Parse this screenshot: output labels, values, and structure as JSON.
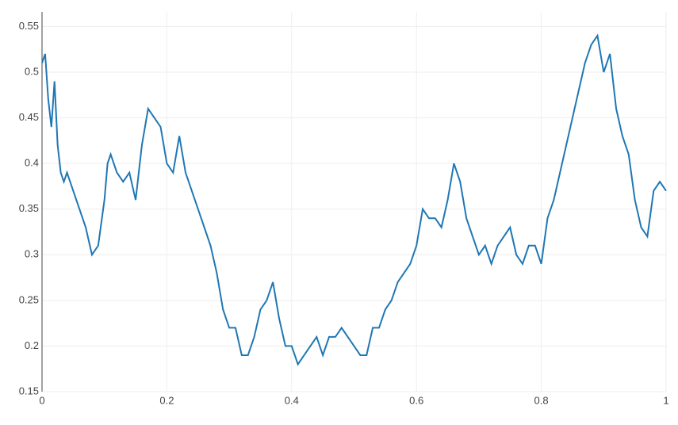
{
  "chart_data": {
    "type": "line",
    "x": [
      0,
      0.005,
      0.01,
      0.015,
      0.02,
      0.025,
      0.03,
      0.035,
      0.04,
      0.05,
      0.06,
      0.07,
      0.08,
      0.09,
      0.1,
      0.105,
      0.11,
      0.12,
      0.13,
      0.14,
      0.15,
      0.16,
      0.17,
      0.18,
      0.19,
      0.2,
      0.21,
      0.22,
      0.23,
      0.24,
      0.25,
      0.26,
      0.27,
      0.28,
      0.29,
      0.3,
      0.31,
      0.32,
      0.33,
      0.34,
      0.35,
      0.36,
      0.37,
      0.38,
      0.39,
      0.4,
      0.41,
      0.42,
      0.43,
      0.44,
      0.45,
      0.46,
      0.47,
      0.48,
      0.49,
      0.5,
      0.51,
      0.52,
      0.53,
      0.54,
      0.55,
      0.56,
      0.57,
      0.58,
      0.59,
      0.6,
      0.61,
      0.62,
      0.63,
      0.64,
      0.65,
      0.66,
      0.67,
      0.68,
      0.69,
      0.7,
      0.71,
      0.72,
      0.73,
      0.74,
      0.75,
      0.76,
      0.77,
      0.78,
      0.79,
      0.8,
      0.81,
      0.82,
      0.83,
      0.84,
      0.85,
      0.86,
      0.87,
      0.88,
      0.89,
      0.9,
      0.91,
      0.92,
      0.93,
      0.94,
      0.95,
      0.96,
      0.97,
      0.98,
      0.99,
      1
    ],
    "series": [
      {
        "color": "#1f77b4",
        "values": [
          0.51,
          0.52,
          0.47,
          0.44,
          0.49,
          0.42,
          0.39,
          0.38,
          0.39,
          0.37,
          0.35,
          0.33,
          0.3,
          0.31,
          0.36,
          0.4,
          0.41,
          0.39,
          0.38,
          0.39,
          0.36,
          0.42,
          0.46,
          0.45,
          0.44,
          0.4,
          0.39,
          0.43,
          0.39,
          0.37,
          0.35,
          0.33,
          0.31,
          0.28,
          0.24,
          0.22,
          0.22,
          0.19,
          0.19,
          0.21,
          0.24,
          0.25,
          0.27,
          0.23,
          0.2,
          0.2,
          0.18,
          0.19,
          0.2,
          0.21,
          0.19,
          0.21,
          0.21,
          0.22,
          0.21,
          0.2,
          0.19,
          0.19,
          0.22,
          0.22,
          0.24,
          0.25,
          0.27,
          0.28,
          0.29,
          0.31,
          0.35,
          0.34,
          0.34,
          0.33,
          0.36,
          0.4,
          0.38,
          0.34,
          0.32,
          0.3,
          0.31,
          0.29,
          0.31,
          0.32,
          0.33,
          0.3,
          0.29,
          0.31,
          0.31,
          0.29,
          0.34,
          0.36,
          0.39,
          0.42,
          0.45,
          0.48,
          0.51,
          0.53,
          0.54,
          0.5,
          0.52,
          0.46,
          0.43,
          0.41,
          0.36,
          0.33,
          0.32,
          0.37,
          0.38,
          0.37
        ]
      }
    ],
    "xlim": [
      0,
      1
    ],
    "xticks": [
      0,
      0.2,
      0.4,
      0.6,
      0.8,
      1
    ],
    "ylim": [
      0.15,
      0.566
    ],
    "yticks": [
      0.15,
      0.2,
      0.25,
      0.3,
      0.35,
      0.4,
      0.45,
      0.5,
      0.55
    ],
    "grid": true
  }
}
